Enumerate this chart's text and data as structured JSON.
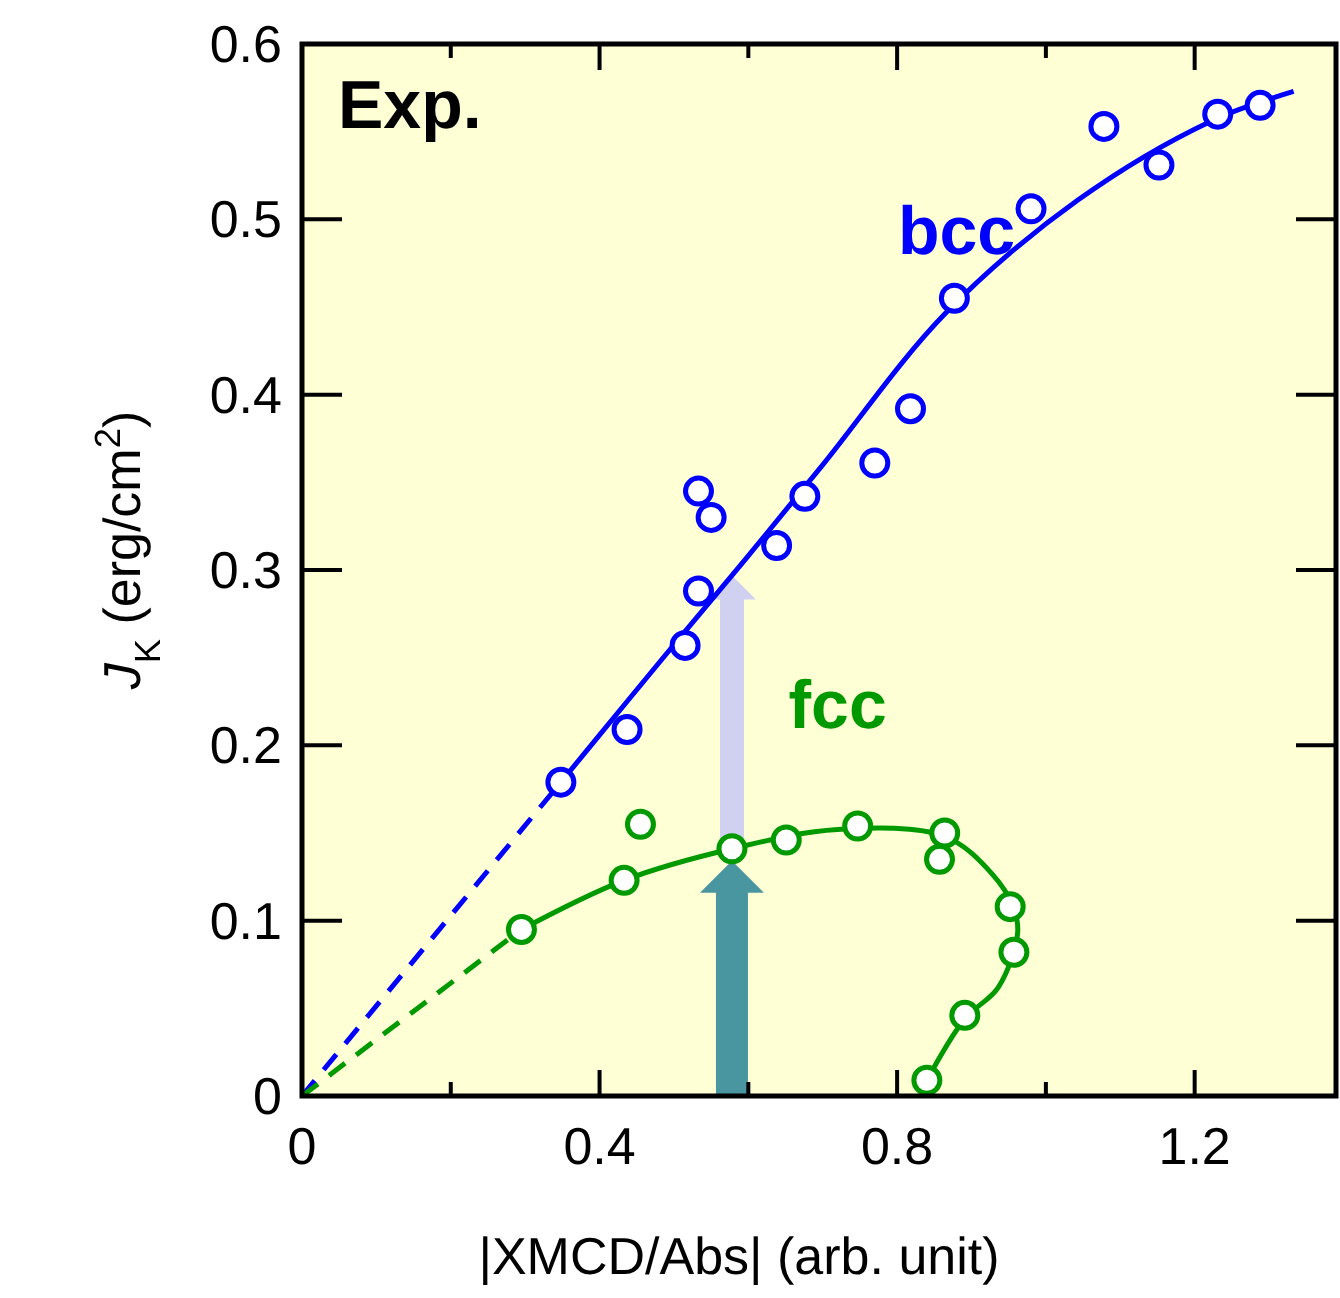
{
  "chart_data": {
    "type": "scatter",
    "xlabel": "|XMCD/Abs| (arb. unit)",
    "ylabel": "J$_{K}$  (erg/cm$^{2}$)",
    "xlim": [
      0,
      1.39
    ],
    "ylim": [
      0,
      0.6
    ],
    "xticks": [
      0,
      {
        "value": 0.2,
        "label": null
      },
      0.4,
      {
        "value": 0.6,
        "label": null
      },
      0.8,
      {
        "value": 1.0,
        "label": null
      },
      1.2
    ],
    "yticks": [
      0,
      0.1,
      0.2,
      0.3,
      0.4,
      0.5,
      0.6
    ],
    "grid": false,
    "annotations": [
      "Exp."
    ],
    "series": [
      {
        "name": "bcc",
        "marker": "circle",
        "color": "#0000ff",
        "x": [
          0.348,
          0.437,
          0.515,
          0.533,
          0.533,
          0.55,
          0.638,
          0.676,
          0.77,
          0.818,
          0.877,
          0.98,
          1.078,
          1.152,
          1.231,
          1.288
        ],
        "values": [
          0.179,
          0.209,
          0.257,
          0.288,
          0.345,
          0.33,
          0.314,
          0.342,
          0.361,
          0.392,
          0.455,
          0.506,
          0.553,
          0.531,
          0.56,
          0.565
        ]
      },
      {
        "type": "line",
        "marker": "none",
        "color": "#0000ff",
        "line_style": "solid",
        "x": [
          0.348,
          0.437,
          0.515,
          0.596,
          0.7,
          0.864,
          1.043,
          1.222,
          1.333
        ],
        "values": [
          0.179,
          0.225,
          0.265,
          0.306,
          0.36,
          0.446,
          0.511,
          0.556,
          0.573
        ]
      },
      {
        "type": "line",
        "marker": "none",
        "color": "#0000ff",
        "line_style": "dashed",
        "x": [
          0,
          0.348
        ],
        "values": [
          0,
          0.179
        ]
      },
      {
        "name": "fcc",
        "marker": "circle",
        "color": "#009900",
        "x": [
          0.295,
          0.433,
          0.455,
          0.578,
          0.651,
          0.747,
          0.864,
          0.857,
          0.952,
          0.957,
          0.891,
          0.84
        ],
        "values": [
          0.095,
          0.123,
          0.155,
          0.141,
          0.146,
          0.154,
          0.15,
          0.135,
          0.108,
          0.082,
          0.046,
          0.009
        ]
      },
      {
        "type": "line",
        "marker": "none",
        "color": "#009900",
        "line_style": "solid",
        "x": [
          0.295,
          0.433,
          0.578,
          0.72,
          0.864,
          0.927,
          0.956,
          0.962,
          0.936,
          0.891,
          0.84
        ],
        "values": [
          0.095,
          0.123,
          0.141,
          0.152,
          0.148,
          0.127,
          0.108,
          0.093,
          0.062,
          0.044,
          0.009
        ]
      },
      {
        "type": "line",
        "marker": "none",
        "color": "#009900",
        "line_style": "dashed",
        "x": [
          0,
          0.295
        ],
        "values": [
          0,
          0.095
        ]
      }
    ]
  }
}
